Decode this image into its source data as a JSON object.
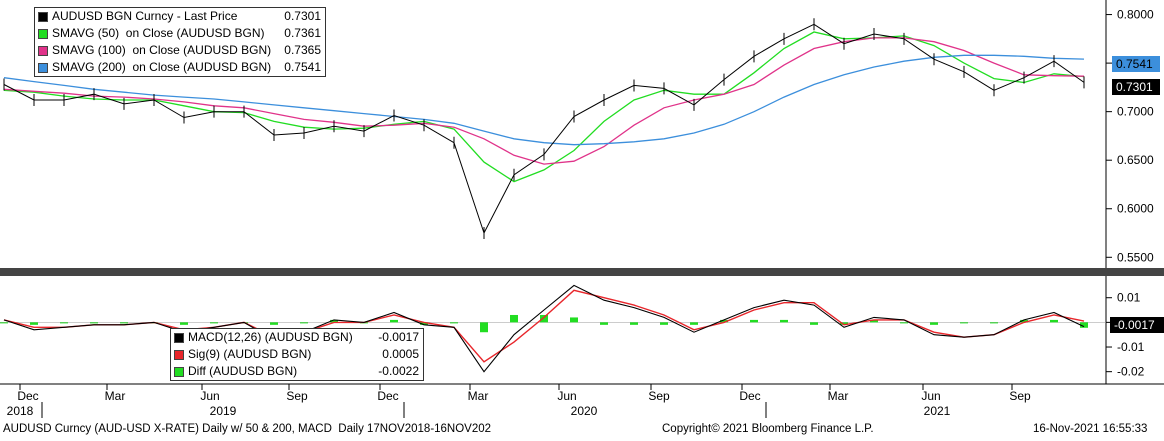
{
  "legend_top": [
    {
      "label": "AUDUSD BGN Curncy - Last Price",
      "value": "0.7301",
      "color": "#000000"
    },
    {
      "label": "SMAVG (50)  on Close (AUDUSD BGN)",
      "value": "0.7361",
      "color": "#22dd22"
    },
    {
      "label": "SMAVG (100)  on Close (AUDUSD BGN)",
      "value": "0.7365",
      "color": "#e0338a"
    },
    {
      "label": "SMAVG (200)  on Close (AUDUSD BGN)",
      "value": "0.7541",
      "color": "#3c8fdc"
    }
  ],
  "legend_bottom": [
    {
      "label": "MACD(12,26) (AUDUSD BGN)",
      "value": "-0.0017",
      "color": "#000000"
    },
    {
      "label": "Sig(9) (AUDUSD BGN)",
      "value": "0.0005",
      "color": "#e8262b"
    },
    {
      "label": "Diff (AUDUSD BGN)",
      "value": "-0.0022",
      "color": "#22dd22"
    }
  ],
  "value_tags": {
    "sma200": "0.7541",
    "last": "0.7301",
    "macd": "-0.0017"
  },
  "footer": {
    "left": "AUDUSD Curncy (AUD-USD X-RATE) Daily w/ 50 & 200, MACD  Daily 17NOV2018-16NOV202",
    "center": "Copyright© 2021 Bloomberg Finance L.P.",
    "right": "16-Nov-2021 16:55:33"
  },
  "chart_data": [
    {
      "type": "line",
      "subtype": "candlestick_with_moving_averages",
      "x": [
        "2018-11",
        "2018-12",
        "2019-01",
        "2019-02",
        "2019-03",
        "2019-04",
        "2019-05",
        "2019-06",
        "2019-07",
        "2019-08",
        "2019-09",
        "2019-10",
        "2019-11",
        "2019-12",
        "2020-01",
        "2020-02",
        "2020-03",
        "2020-04",
        "2020-05",
        "2020-06",
        "2020-07",
        "2020-08",
        "2020-09",
        "2020-10",
        "2020-11",
        "2020-12",
        "2021-01",
        "2021-02",
        "2021-03",
        "2021-04",
        "2021-05",
        "2021-06",
        "2021-07",
        "2021-08",
        "2021-09",
        "2021-10",
        "2021-11"
      ],
      "series": [
        {
          "name": "AUDUSD BGN Curncy - Last Price",
          "color": "#000000",
          "values": [
            0.728,
            0.712,
            0.712,
            0.718,
            0.708,
            0.712,
            0.694,
            0.7,
            0.7,
            0.676,
            0.678,
            0.685,
            0.68,
            0.696,
            0.686,
            0.668,
            0.575,
            0.635,
            0.656,
            0.695,
            0.712,
            0.727,
            0.724,
            0.707,
            0.733,
            0.757,
            0.775,
            0.79,
            0.77,
            0.78,
            0.775,
            0.754,
            0.741,
            0.722,
            0.735,
            0.752,
            0.7301
          ]
        },
        {
          "name": "SMAVG (50)  on Close (AUDUSD BGN)",
          "color": "#22dd22",
          "values": [
            0.722,
            0.72,
            0.716,
            0.713,
            0.712,
            0.712,
            0.706,
            0.7,
            0.699,
            0.69,
            0.684,
            0.682,
            0.683,
            0.687,
            0.69,
            0.682,
            0.648,
            0.628,
            0.64,
            0.66,
            0.69,
            0.712,
            0.722,
            0.718,
            0.718,
            0.74,
            0.765,
            0.782,
            0.775,
            0.776,
            0.778,
            0.768,
            0.75,
            0.734,
            0.73,
            0.739,
            0.7361
          ]
        },
        {
          "name": "SMAVG (100)  on Close (AUDUSD BGN)",
          "color": "#e0338a",
          "values": [
            0.723,
            0.721,
            0.719,
            0.716,
            0.715,
            0.713,
            0.71,
            0.706,
            0.704,
            0.698,
            0.692,
            0.689,
            0.685,
            0.686,
            0.688,
            0.684,
            0.672,
            0.655,
            0.646,
            0.649,
            0.664,
            0.686,
            0.704,
            0.712,
            0.718,
            0.728,
            0.748,
            0.765,
            0.772,
            0.776,
            0.776,
            0.772,
            0.763,
            0.75,
            0.738,
            0.737,
            0.7365
          ]
        },
        {
          "name": "SMAVG (200)  on Close (AUDUSD BGN)",
          "color": "#3c8fdc",
          "values": [
            0.735,
            0.731,
            0.727,
            0.723,
            0.72,
            0.717,
            0.715,
            0.713,
            0.71,
            0.707,
            0.704,
            0.701,
            0.698,
            0.695,
            0.692,
            0.688,
            0.68,
            0.672,
            0.668,
            0.666,
            0.667,
            0.669,
            0.672,
            0.678,
            0.687,
            0.7,
            0.715,
            0.728,
            0.738,
            0.746,
            0.752,
            0.756,
            0.758,
            0.758,
            0.757,
            0.755,
            0.7541
          ]
        }
      ],
      "ylim": [
        0.54,
        0.815
      ],
      "y_ticks": [
        0.55,
        0.6,
        0.65,
        0.7,
        0.75,
        0.8
      ],
      "y_tick_labels": [
        "0.5500",
        "0.6000",
        "0.6500",
        "0.7000",
        "0.7500",
        "0.8000"
      ],
      "grid": false,
      "legend_position": "top-left"
    },
    {
      "type": "line",
      "subtype": "macd",
      "x": [
        "2018-11",
        "2018-12",
        "2019-01",
        "2019-02",
        "2019-03",
        "2019-04",
        "2019-05",
        "2019-06",
        "2019-07",
        "2019-08",
        "2019-09",
        "2019-10",
        "2019-11",
        "2019-12",
        "2020-01",
        "2020-02",
        "2020-03",
        "2020-04",
        "2020-05",
        "2020-06",
        "2020-07",
        "2020-08",
        "2020-09",
        "2020-10",
        "2020-11",
        "2020-12",
        "2021-01",
        "2021-02",
        "2021-03",
        "2021-04",
        "2021-05",
        "2021-06",
        "2021-07",
        "2021-08",
        "2021-09",
        "2021-10",
        "2021-11"
      ],
      "series": [
        {
          "name": "MACD(12,26) (AUDUSD BGN)",
          "color": "#000000",
          "values": [
            0.001,
            -0.003,
            -0.002,
            -0.001,
            -0.001,
            0.0,
            -0.004,
            -0.002,
            0.0,
            -0.007,
            -0.004,
            0.001,
            0.0,
            0.004,
            -0.001,
            -0.002,
            -0.02,
            -0.005,
            0.005,
            0.015,
            0.009,
            0.006,
            0.002,
            -0.004,
            0.001,
            0.006,
            0.009,
            0.007,
            -0.002,
            0.002,
            0.001,
            -0.005,
            -0.006,
            -0.005,
            0.001,
            0.004,
            -0.0017
          ]
        },
        {
          "name": "Sig(9) (AUDUSD BGN)",
          "color": "#e8262b",
          "values": [
            0.001,
            -0.002,
            -0.002,
            -0.001,
            -0.001,
            0.0,
            -0.003,
            -0.002,
            0.0,
            -0.006,
            -0.004,
            0.0,
            0.0,
            0.003,
            0.0,
            -0.002,
            -0.016,
            -0.008,
            0.002,
            0.013,
            0.01,
            0.007,
            0.003,
            -0.003,
            0.0,
            0.005,
            0.008,
            0.008,
            -0.001,
            0.001,
            0.001,
            -0.004,
            -0.006,
            -0.005,
            0.0,
            0.003,
            0.0005
          ]
        },
        {
          "name": "Diff (AUDUSD BGN)",
          "color": "#22dd22",
          "style": "histogram",
          "values": [
            0.0,
            -0.001,
            0.0,
            0.0,
            0.0,
            0.0,
            -0.001,
            0.0,
            0.0,
            -0.001,
            0.0,
            0.001,
            0.0,
            0.001,
            -0.001,
            0.0,
            -0.004,
            0.003,
            0.003,
            0.002,
            -0.001,
            -0.001,
            -0.001,
            -0.001,
            0.001,
            0.001,
            0.001,
            -0.001,
            -0.001,
            0.001,
            0.0,
            -0.001,
            0.0,
            0.0,
            0.001,
            0.001,
            -0.0022
          ]
        }
      ],
      "ylim": [
        -0.025,
        0.018
      ],
      "y_ticks": [
        0.01,
        0.0,
        -0.01,
        -0.02
      ],
      "y_tick_labels": [
        "0.01",
        "",
        "-0.01",
        "-0.02"
      ],
      "grid": false,
      "legend_position": "bottom-left"
    }
  ],
  "x_axis": {
    "month_labels": [
      "Dec",
      "Mar",
      "Jun",
      "Sep",
      "Dec",
      "Mar",
      "Jun",
      "Sep",
      "Dec",
      "Mar",
      "Jun",
      "Sep"
    ],
    "year_labels": [
      "2018",
      "2019",
      "2020",
      "2021"
    ]
  }
}
